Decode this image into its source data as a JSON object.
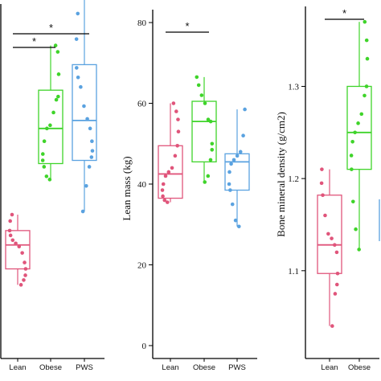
{
  "colors": {
    "Lean": "#e0557b",
    "Obese": "#3fd42a",
    "PWS": "#5aa2e0"
  },
  "chart_data": [
    {
      "type": "box",
      "ylabel": "",
      "ylim": [
        0,
        100
      ],
      "yticks": [],
      "categories": [
        "Lean",
        "Obese",
        "PWS"
      ],
      "series": [
        {
          "category": "Lean",
          "stats": {
            "min": 12,
            "q1": 17,
            "median": 24.5,
            "q3": 29,
            "max": 34
          },
          "points": [
            12,
            13.5,
            15,
            17,
            19,
            22,
            24,
            25,
            26,
            27.5,
            29,
            32,
            34
          ]
        },
        {
          "category": "Obese",
          "stats": {
            "min": 45,
            "q1": 50,
            "median": 61,
            "q3": 73,
            "max": 87
          },
          "points": [
            45,
            46,
            49,
            51,
            53,
            57,
            61,
            62,
            66,
            70,
            71,
            78,
            85,
            87
          ]
        },
        {
          "category": "PWS",
          "stats": {
            "min": 35,
            "q1": 51,
            "median": 63.5,
            "q3": 81,
            "max": 106
          },
          "points": [
            35,
            43,
            49,
            52,
            54,
            57,
            61,
            64,
            68,
            74,
            77,
            80,
            89,
            97,
            106
          ]
        }
      ],
      "significance": [
        {
          "from": "Lean",
          "to": "PWS",
          "label": "*"
        },
        {
          "from": "Lean",
          "to": "Obese",
          "label": "*"
        }
      ]
    },
    {
      "type": "box",
      "ylabel": "Lean mass (kg)",
      "ylim": [
        -2,
        83
      ],
      "yticks": [
        "0",
        "20",
        "40",
        "60",
        "80"
      ],
      "categories": [
        "Lean",
        "Obese",
        "PWS"
      ],
      "series": [
        {
          "category": "Lean",
          "stats": {
            "min": 35.5,
            "q1": 36.5,
            "median": 42.5,
            "q3": 49.5,
            "max": 60
          },
          "points": [
            35.5,
            36,
            37,
            38.5,
            40,
            42,
            43,
            44,
            47,
            49.5,
            53,
            56,
            58,
            60
          ]
        },
        {
          "category": "Obese",
          "stats": {
            "min": 40.5,
            "q1": 45.5,
            "median": 55.5,
            "q3": 60.5,
            "max": 66.5
          },
          "points": [
            40.5,
            42,
            46,
            48.5,
            50,
            55.5,
            56,
            60,
            62,
            64.5,
            66.5
          ]
        },
        {
          "category": "PWS",
          "stats": {
            "min": 29.5,
            "q1": 38.5,
            "median": 45.5,
            "q3": 47.5,
            "max": 58.5
          },
          "points": [
            29.5,
            31,
            35,
            38.5,
            40,
            43,
            45,
            46,
            47,
            48,
            52,
            58.5
          ]
        }
      ],
      "significance": [
        {
          "from": "Lean",
          "to": "Obese",
          "label": "*"
        }
      ]
    },
    {
      "type": "box",
      "ylabel": "Bone mineral density (g/cm2)",
      "ylim": [
        1.01,
        1.385
      ],
      "yticks": [
        "1.1",
        "1.2",
        "1.3"
      ],
      "categories": [
        "Lean",
        "Obese"
      ],
      "series": [
        {
          "category": "Lean",
          "stats": {
            "min": 1.04,
            "q1": 1.097,
            "median": 1.128,
            "q3": 1.182,
            "max": 1.21
          },
          "points": [
            1.04,
            1.075,
            1.085,
            1.097,
            1.12,
            1.128,
            1.135,
            1.14,
            1.16,
            1.182,
            1.195,
            1.21
          ]
        },
        {
          "category": "Obese",
          "stats": {
            "min": 1.123,
            "q1": 1.21,
            "median": 1.25,
            "q3": 1.3,
            "max": 1.37
          },
          "points": [
            1.123,
            1.145,
            1.175,
            1.21,
            1.225,
            1.24,
            1.25,
            1.26,
            1.27,
            1.29,
            1.3,
            1.33,
            1.35,
            1.37
          ]
        }
      ],
      "significance": [
        {
          "from": "Lean",
          "to": "Obese",
          "label": "*"
        }
      ]
    }
  ]
}
